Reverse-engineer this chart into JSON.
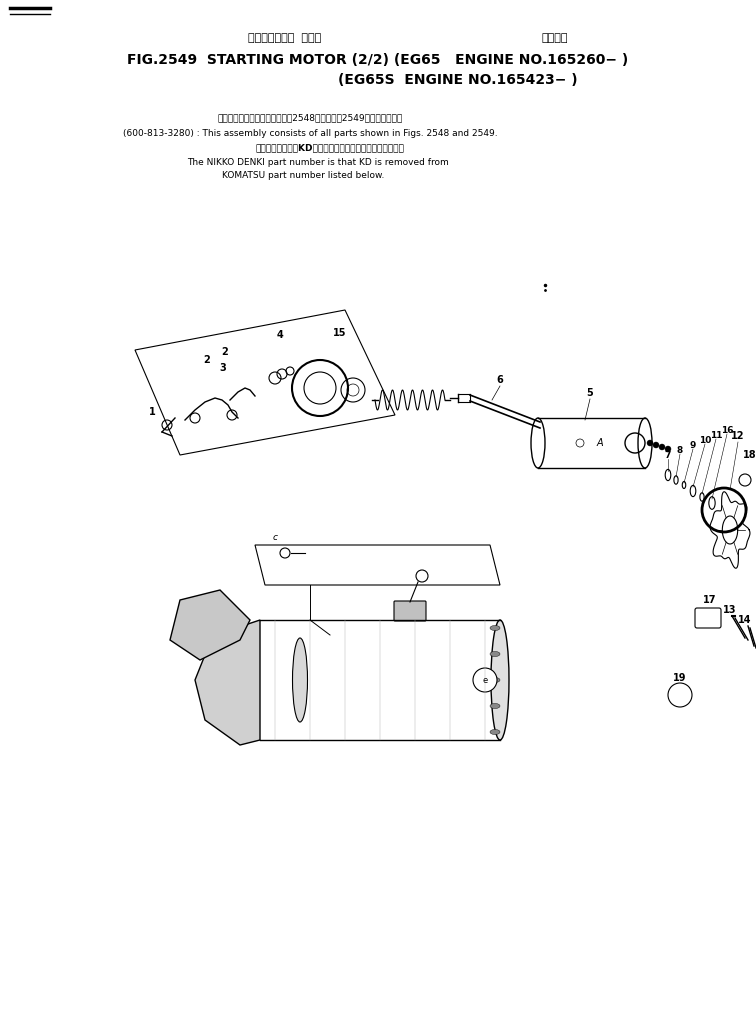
{
  "bg_color": "#ffffff",
  "text_color": "#000000",
  "title_jp_left": "スターティング  モータ",
  "title_jp_right": "適用号機",
  "title_line1": "FIG.2549  STARTING MOTOR (2/2) (EG65   ENGINE NO.165260− )",
  "title_line2": "(EG65S  ENGINE NO.165423− )",
  "note_jp1": "このアセンブリの構成部品は第2548図および第2549図を含みます。",
  "note_en1": "(600-813-3280) : This assembly consists of all parts shown in Figs. 2548 and 2549.",
  "note_jp2": "品番のメーカ記号KDを除いたものが日興電機の品番です。",
  "note_en2": "The NIKKO DENKI part number is that KD is removed from",
  "note_en3": "KOMATSU part number listed below.",
  "lw": 0.8
}
